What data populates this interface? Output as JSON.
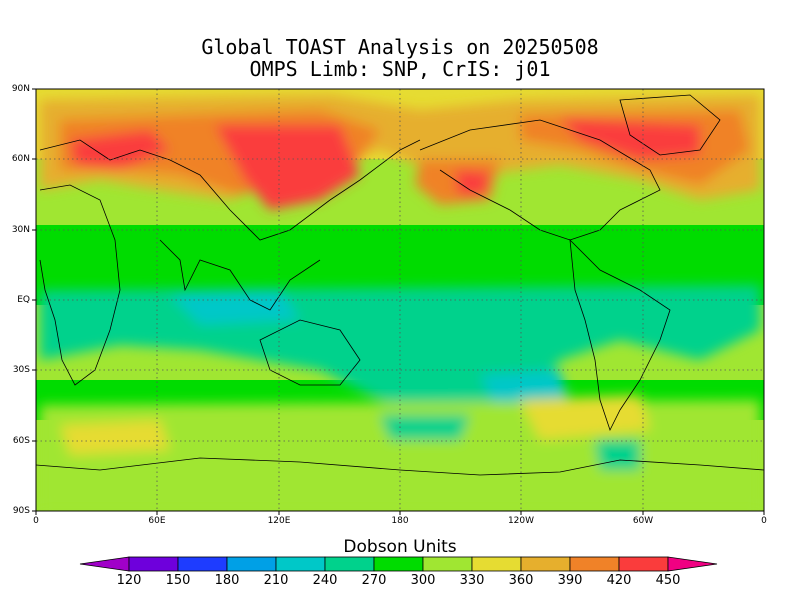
{
  "title_line1": "Global TOAST Analysis on 20250508",
  "title_line2": "OMPS Limb: SNP,  CrIS: j01",
  "lat_labels": [
    "90N",
    "60N",
    "30N",
    "EQ",
    "30S",
    "60S",
    "90S"
  ],
  "lon_labels": [
    "0",
    "60E",
    "120E",
    "180",
    "120W",
    "60W",
    "0"
  ],
  "colorbar": {
    "title": "Dobson Units",
    "ticks": [
      "120",
      "150",
      "180",
      "210",
      "240",
      "270",
      "300",
      "330",
      "360",
      "390",
      "420",
      "450"
    ],
    "colors": [
      "#a000c8",
      "#6e00dc",
      "#1e3cff",
      "#00a0e6",
      "#00c8c8",
      "#00d28c",
      "#00dc00",
      "#a0e632",
      "#e6dc32",
      "#e6af2d",
      "#f08228",
      "#fa3c3c",
      "#f00082"
    ]
  }
}
